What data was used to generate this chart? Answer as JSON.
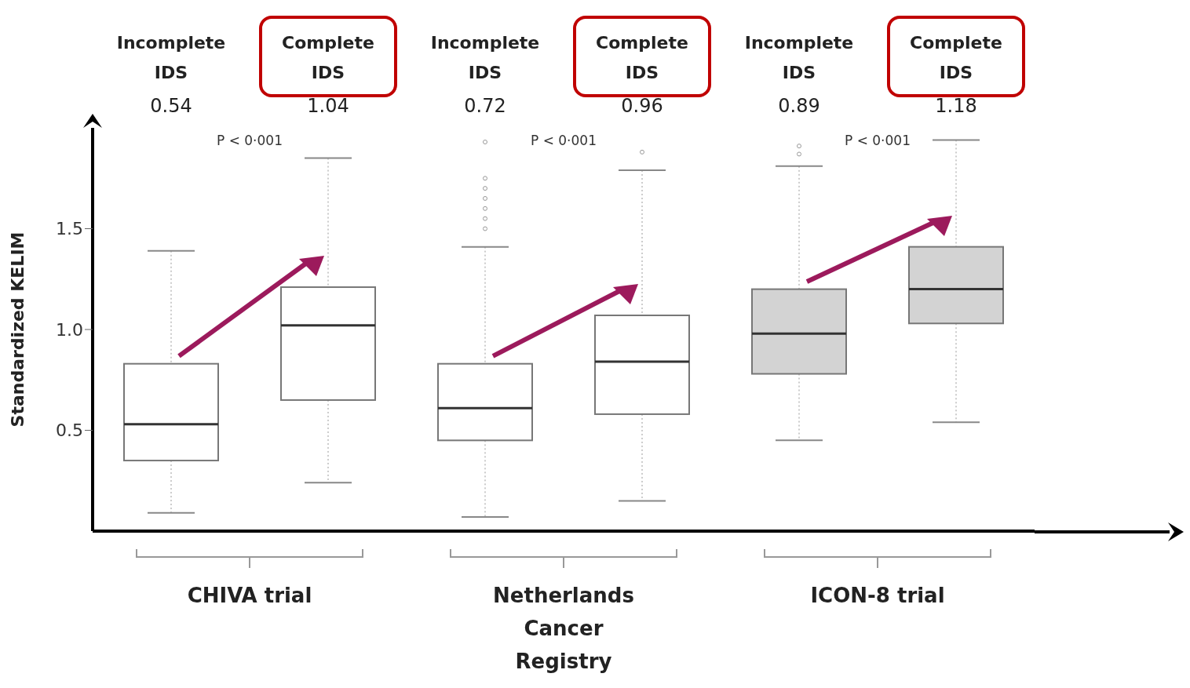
{
  "chart_data": {
    "type": "box",
    "ylabel": "Standardized KELIM",
    "categories": [
      "Incomplete IDS",
      "Complete IDS",
      "Incomplete IDS",
      "Complete IDS",
      "Incomplete IDS",
      "Complete IDS"
    ],
    "boxes": [
      {
        "low": 0.09,
        "q1": 0.35,
        "median": 0.53,
        "q3": 0.83,
        "high": 1.39
      },
      {
        "low": 0.24,
        "q1": 0.65,
        "median": 1.02,
        "q3": 1.21,
        "high": 1.85
      },
      {
        "low": 0.07,
        "q1": 0.45,
        "median": 0.61,
        "q3": 0.83,
        "high": 1.41,
        "outliers": [
          1.5,
          1.55,
          1.6,
          1.65,
          1.7,
          1.75,
          1.93
        ]
      },
      {
        "low": 0.15,
        "q1": 0.58,
        "median": 0.84,
        "q3": 1.07,
        "high": 1.79,
        "outliers": [
          1.88
        ]
      },
      {
        "low": 0.45,
        "q1": 0.78,
        "median": 0.98,
        "q3": 1.2,
        "high": 1.81,
        "outliers": [
          1.87,
          1.91
        ]
      },
      {
        "low": 0.54,
        "q1": 1.03,
        "median": 1.2,
        "q3": 1.41,
        "high": 1.94
      }
    ],
    "colors": [
      "#ffffff",
      "#ffffff",
      "#ffffff",
      "#ffffff",
      "#d3d3d3",
      "#d3d3d3"
    ],
    "ylim": [
      0,
      2
    ],
    "yticks": [
      0.5,
      {
        "value": 1.0,
        "label": "1.0"
      },
      1.5
    ],
    "grid": false,
    "annotations": [
      "0.54",
      "1.04",
      "0.72",
      "0.96",
      "0.89",
      "1.18",
      "P < 0·001",
      "P < 0·001",
      "P < 0·001",
      "CHIVA trial",
      "Netherlands Cancer Registry",
      "ICON-8 trial"
    ]
  }
}
